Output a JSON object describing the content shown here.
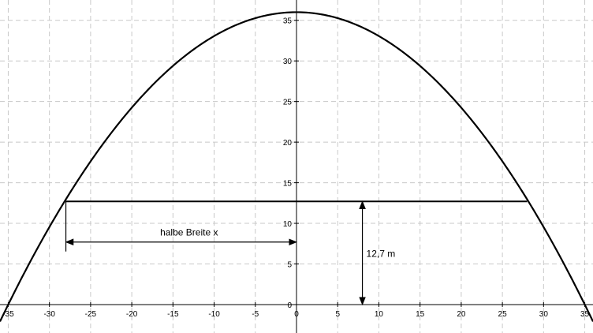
{
  "chart_data": {
    "type": "line",
    "title": "",
    "xlabel": "",
    "ylabel": "",
    "xlim": [
      -36,
      36
    ],
    "ylim": [
      -3.5,
      37.5
    ],
    "x_ticks": [
      -35,
      -30,
      -25,
      -20,
      -15,
      -10,
      -5,
      0,
      5,
      10,
      15,
      20,
      25,
      30,
      35
    ],
    "x_tick_labels": [
      "-35",
      "-30",
      "-25",
      "-20",
      "-15",
      "-10",
      "-5",
      "0",
      "5",
      "10",
      "15",
      "20",
      "25",
      "30",
      "35"
    ],
    "y_ticks": [
      0,
      5,
      10,
      15,
      20,
      25,
      30,
      35
    ],
    "y_tick_labels": [
      "0",
      "5",
      "10",
      "15",
      "20",
      "25",
      "30",
      "35"
    ],
    "grid": true,
    "series": [
      {
        "kind": "parabola",
        "vertex": [
          0,
          36
        ],
        "roots": [
          -35,
          35
        ]
      }
    ],
    "horizontal_line": {
      "y": 12.7,
      "x_from": -28,
      "x_to": 28
    },
    "annotations": [
      {
        "label": "halbe Breite x",
        "from": [
          -28,
          7.7
        ],
        "to": [
          0,
          7.7
        ]
      },
      {
        "label": "12,7 m",
        "from": [
          8,
          0
        ],
        "to": [
          8,
          12.7
        ]
      }
    ]
  }
}
